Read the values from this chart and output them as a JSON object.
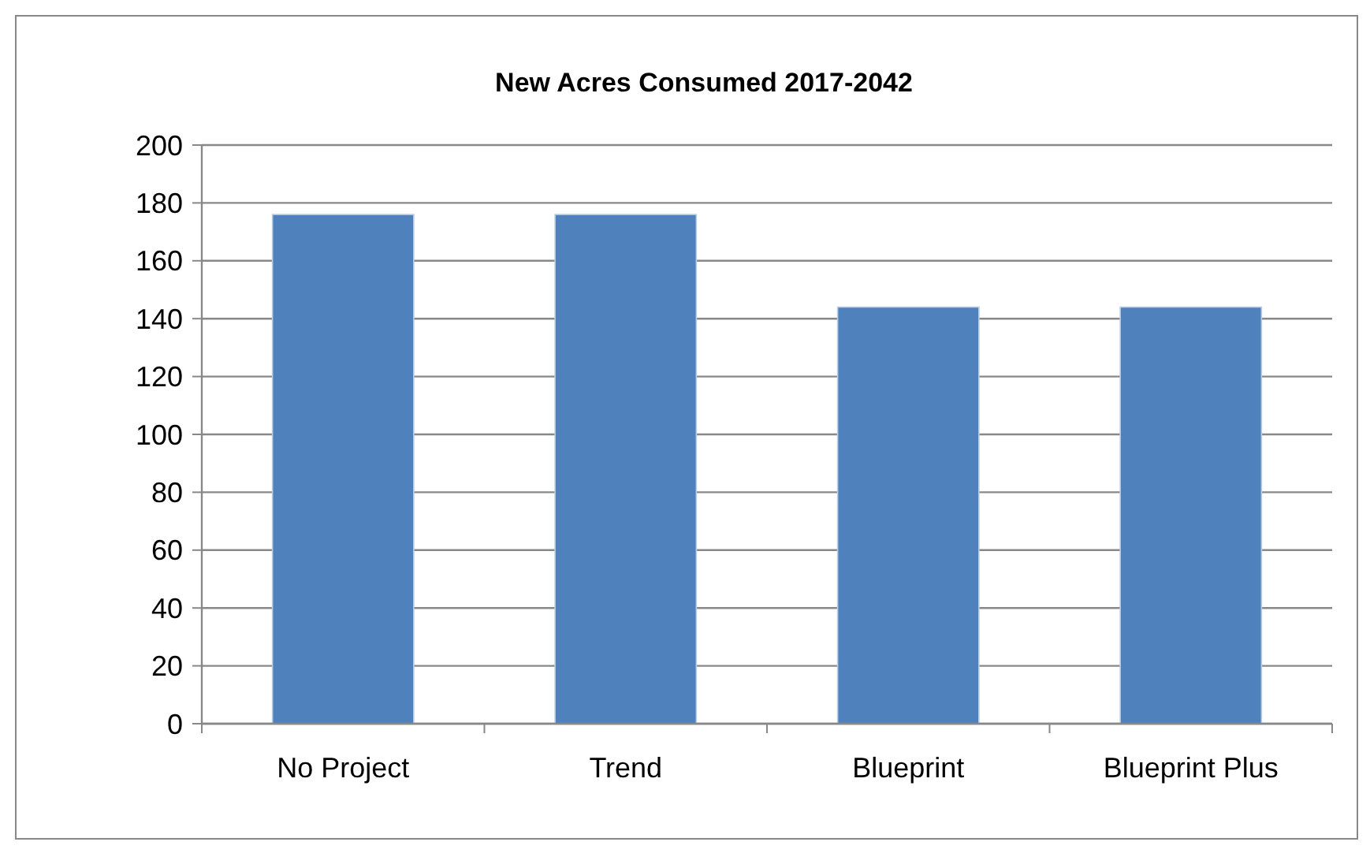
{
  "chart_data": {
    "type": "bar",
    "title": "New Acres Consumed 2017-2042",
    "categories": [
      "No Project",
      "Trend",
      "Blueprint",
      "Blueprint Plus"
    ],
    "values": [
      176,
      176,
      144,
      144
    ],
    "color": "#4f81bd",
    "ylim": [
      0,
      200
    ],
    "yticks": [
      0,
      20,
      40,
      60,
      80,
      100,
      120,
      140,
      160,
      180,
      200
    ],
    "grid": "y"
  }
}
